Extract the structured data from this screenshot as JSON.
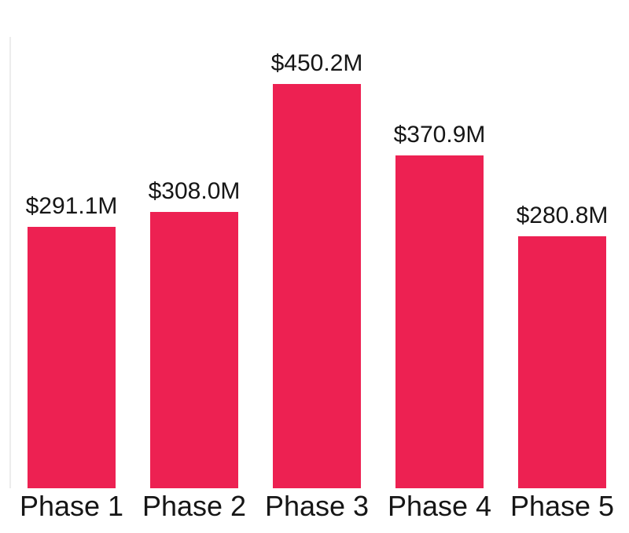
{
  "chart": {
    "background_color": "#ffffff",
    "bar_color": "#ED2152",
    "text_color": "#161616",
    "axis_line_color": "#ececec"
  },
  "chart_data": {
    "type": "bar",
    "categories": [
      "Phase 1",
      "Phase 2",
      "Phase 3",
      "Phase 4",
      "Phase 5"
    ],
    "values": [
      291.1,
      308.0,
      450.2,
      370.9,
      280.8
    ],
    "value_labels": [
      "$291.1M",
      "$308.0M",
      "$450.2M",
      "$370.9M",
      "$280.8M"
    ],
    "unit": "$M",
    "title": "",
    "xlabel": "",
    "ylabel": "",
    "ylim": [
      0,
      503
    ],
    "grid": false,
    "legend": false,
    "y_axis_line": true,
    "x_axis_line": false
  }
}
